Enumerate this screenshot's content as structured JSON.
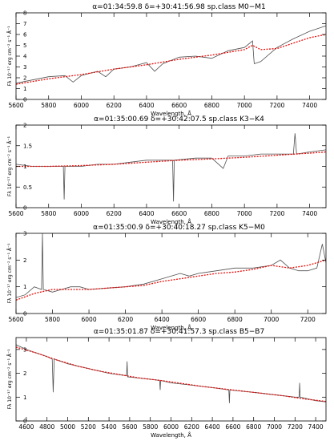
{
  "figure": {
    "panel_count": 4
  },
  "chart_data": [
    {
      "type": "line",
      "title_parts": {
        "alpha_label": "α=01:34:59.8",
        "delta_label": "δ=+30:41:56.98",
        "spclass_label": "sp.class  M0−M1"
      },
      "xlabel": "Wavelength, Å",
      "ylabel": "Fλ 10⁻¹⁷ erg cm⁻² s⁻¹ Å⁻¹",
      "xlim": [
        5600,
        7500
      ],
      "ylim": [
        0,
        8
      ],
      "xticks": [
        5600,
        5800,
        6000,
        6200,
        6400,
        6600,
        6800,
        7000,
        7200,
        7400
      ],
      "yticks": [
        0,
        1,
        2,
        3,
        4,
        5,
        6,
        7,
        8
      ],
      "series": [
        {
          "style": "solid",
          "color": "#505050",
          "x": [
            5600,
            5700,
            5800,
            5900,
            5950,
            6000,
            6100,
            6150,
            6200,
            6300,
            6400,
            6450,
            6500,
            6600,
            6700,
            6800,
            6900,
            7000,
            7050,
            7060,
            7100,
            7200,
            7300,
            7400,
            7500
          ],
          "y": [
            1.5,
            1.8,
            2.1,
            2.2,
            1.6,
            2.2,
            2.6,
            2.1,
            2.8,
            3.0,
            3.4,
            2.6,
            3.3,
            3.9,
            4.0,
            3.8,
            4.5,
            4.8,
            5.4,
            3.3,
            3.5,
            4.8,
            5.6,
            6.3,
            6.8
          ]
        },
        {
          "style": "dotted",
          "color": "#e8100c",
          "x": [
            5600,
            5800,
            6000,
            6200,
            6400,
            6600,
            6800,
            7000,
            7050,
            7100,
            7200,
            7300,
            7400,
            7500
          ],
          "y": [
            1.4,
            1.9,
            2.3,
            2.8,
            3.2,
            3.7,
            4.1,
            4.6,
            5.0,
            4.6,
            4.7,
            5.2,
            5.7,
            6.0
          ]
        }
      ]
    },
    {
      "type": "line",
      "title_parts": {
        "alpha_label": "α=01:35:00.69",
        "delta_label": "δ=+30:42:07.5",
        "spclass_label": "sp.class  K3−K4"
      },
      "xlabel": "Wavelength, Å",
      "ylabel": "Fλ 10⁻¹⁷ erg cm⁻² s⁻¹ Å⁻¹",
      "xlim": [
        5600,
        7500
      ],
      "ylim": [
        0,
        2
      ],
      "xticks": [
        5600,
        5800,
        6000,
        6200,
        6400,
        6600,
        6800,
        7000,
        7200,
        7400
      ],
      "yticks": [
        0,
        0.5,
        1.0,
        1.5,
        2
      ],
      "series": [
        {
          "style": "solid",
          "color": "#505050",
          "x": [
            5600,
            5700,
            5800,
            5890,
            5895,
            5900,
            6000,
            6100,
            6200,
            6300,
            6400,
            6500,
            6560,
            6565,
            6570,
            6700,
            6800,
            6870,
            6900,
            7000,
            7100,
            7200,
            7300,
            7310,
            7320,
            7400,
            7500
          ],
          "y": [
            1.05,
            1.0,
            1.0,
            1.0,
            0.2,
            1.0,
            1.0,
            1.05,
            1.05,
            1.1,
            1.15,
            1.15,
            1.15,
            0.15,
            1.15,
            1.2,
            1.2,
            0.95,
            1.25,
            1.25,
            1.3,
            1.3,
            1.3,
            1.8,
            1.3,
            1.35,
            1.4
          ]
        },
        {
          "style": "dotted",
          "color": "#e8100c",
          "x": [
            5600,
            5800,
            6000,
            6200,
            6400,
            6600,
            6800,
            7000,
            7200,
            7400,
            7500
          ],
          "y": [
            1.0,
            1.0,
            1.02,
            1.05,
            1.1,
            1.15,
            1.18,
            1.22,
            1.27,
            1.32,
            1.35
          ]
        }
      ]
    },
    {
      "type": "line",
      "title_parts": {
        "alpha_label": "α=01:35:00.9",
        "delta_label": "δ=+30:40:18.27",
        "spclass_label": "sp.class  K5−M0"
      },
      "xlabel": "Wavelength, Å",
      "ylabel": "Fλ 10⁻¹⁷ erg cm⁻² s⁻¹ Å⁻¹",
      "xlim": [
        5600,
        7300
      ],
      "ylim": [
        0,
        3
      ],
      "xticks": [
        5600,
        5800,
        6000,
        6200,
        6400,
        6600,
        6800,
        7000,
        7200
      ],
      "yticks": [
        0,
        1,
        2,
        3
      ],
      "series": [
        {
          "style": "solid",
          "color": "#505050",
          "x": [
            5600,
            5650,
            5700,
            5740,
            5745,
            5750,
            5800,
            5850,
            5900,
            5950,
            6000,
            6100,
            6200,
            6300,
            6400,
            6500,
            6550,
            6600,
            6700,
            6800,
            6900,
            7000,
            7050,
            7100,
            7150,
            7200,
            7250,
            7280,
            7300
          ],
          "y": [
            0.6,
            0.7,
            1.0,
            0.9,
            3.0,
            0.9,
            0.8,
            0.9,
            1.0,
            1.0,
            0.9,
            0.95,
            1.0,
            1.1,
            1.3,
            1.5,
            1.4,
            1.5,
            1.6,
            1.7,
            1.7,
            1.8,
            2.0,
            1.7,
            1.6,
            1.6,
            1.7,
            2.6,
            1.9
          ]
        },
        {
          "style": "dotted",
          "color": "#e8100c",
          "x": [
            5600,
            5700,
            5800,
            5900,
            6000,
            6100,
            6200,
            6300,
            6400,
            6500,
            6600,
            6700,
            6800,
            6900,
            7000,
            7100,
            7200,
            7300
          ],
          "y": [
            0.5,
            0.75,
            0.9,
            0.9,
            0.9,
            0.95,
            1.0,
            1.05,
            1.2,
            1.3,
            1.4,
            1.5,
            1.55,
            1.65,
            1.8,
            1.7,
            1.8,
            2.0
          ]
        }
      ]
    },
    {
      "type": "line",
      "title_parts": {
        "alpha_label": "α=01:35:01.87",
        "delta_label": "δ=+30:41:57.3",
        "spclass_label": "sp.class  B5−B7"
      },
      "xlabel": "Wavelength, Å",
      "ylabel": "Fλ 10⁻¹⁷ erg cm⁻² s⁻¹ Å⁻¹",
      "xlim": [
        4500,
        7500
      ],
      "ylim": [
        0,
        3.5
      ],
      "xticks": [
        4600,
        4800,
        5000,
        5200,
        5400,
        5600,
        5800,
        6000,
        6200,
        6400,
        6600,
        6800,
        7000,
        7200,
        7400
      ],
      "yticks": [
        0,
        1,
        2,
        3
      ],
      "series": [
        {
          "style": "solid",
          "color": "#505050",
          "x": [
            4500,
            4600,
            4800,
            4850,
            4860,
            4870,
            5000,
            5200,
            5400,
            5570,
            5575,
            5580,
            5800,
            5890,
            5895,
            5900,
            6000,
            6200,
            6400,
            6560,
            6565,
            6570,
            6800,
            7000,
            7200,
            7240,
            7245,
            7250,
            7400,
            7500
          ],
          "y": [
            3.2,
            3.0,
            2.7,
            2.6,
            1.2,
            2.6,
            2.4,
            2.2,
            2.0,
            1.9,
            2.5,
            1.85,
            1.75,
            1.7,
            1.3,
            1.7,
            1.6,
            1.5,
            1.4,
            1.3,
            0.75,
            1.3,
            1.2,
            1.1,
            1.0,
            1.0,
            1.6,
            1.0,
            0.85,
            0.8
          ]
        },
        {
          "style": "dotted",
          "color": "#e8100c",
          "x": [
            4500,
            4700,
            4900,
            5100,
            5300,
            5500,
            5700,
            5900,
            6100,
            6300,
            6500,
            6700,
            6900,
            7100,
            7300,
            7500
          ],
          "y": [
            3.1,
            2.85,
            2.55,
            2.3,
            2.1,
            1.95,
            1.8,
            1.7,
            1.58,
            1.45,
            1.35,
            1.25,
            1.15,
            1.05,
            0.92,
            0.82
          ]
        }
      ]
    }
  ]
}
